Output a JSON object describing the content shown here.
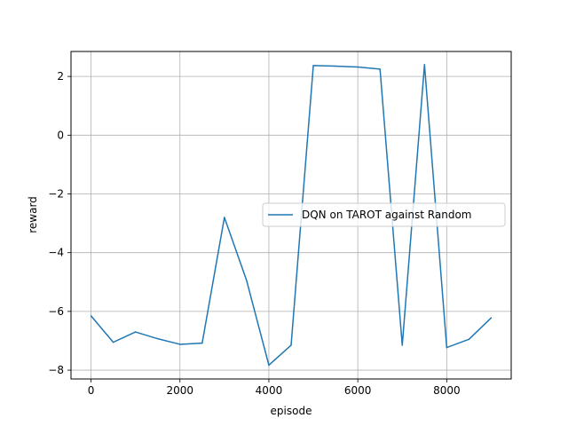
{
  "chart_data": {
    "type": "line",
    "title": "",
    "xlabel": "episode",
    "ylabel": "reward",
    "xlim": [
      -450,
      9450
    ],
    "ylim": [
      -8.3,
      2.85
    ],
    "xticks": [
      0,
      2000,
      4000,
      6000,
      8000
    ],
    "xtick_labels": [
      "0",
      "2000",
      "4000",
      "6000",
      "8000"
    ],
    "yticks": [
      -8,
      -6,
      -4,
      -2,
      0,
      2
    ],
    "ytick_labels": [
      "−8",
      "−6",
      "−4",
      "−2",
      "0",
      "2"
    ],
    "grid": true,
    "legend_position": "center-right",
    "series": [
      {
        "name": "DQN on TAROT against Random",
        "color": "#1f77b4",
        "x": [
          0,
          500,
          1000,
          1500,
          2000,
          2500,
          3000,
          3500,
          4000,
          4500,
          5000,
          5500,
          6000,
          6500,
          7000,
          7500,
          8000,
          8500,
          9000
        ],
        "y": [
          -6.15,
          -7.05,
          -6.7,
          -6.93,
          -7.12,
          -7.08,
          -2.8,
          -4.95,
          -7.83,
          -7.15,
          2.37,
          2.35,
          2.32,
          2.25,
          -7.15,
          2.4,
          -7.23,
          -6.95,
          -6.22
        ]
      }
    ]
  }
}
